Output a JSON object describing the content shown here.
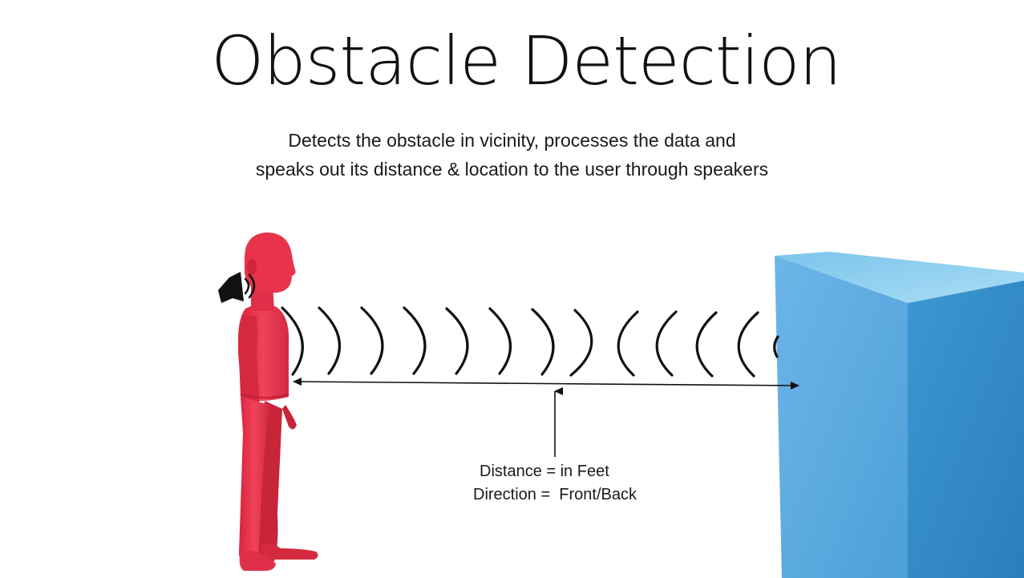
{
  "slide": {
    "title": "Obstacle Detection",
    "subtitle_line1": "Detects the obstacle in vicinity, processes the data and",
    "subtitle_line2": "speaks out its distance & location to the user through speakers"
  },
  "annotations": {
    "distance": "Distance = in Feet",
    "direction": "Direction =  Front/Back"
  },
  "colors": {
    "person": "#e8334a",
    "person_shadow": "#c41f36",
    "box_front": "#5aa9e0",
    "box_side": "#3a8fcc",
    "box_top": "#8fd0f0",
    "wave": "#111111",
    "speaker": "#111111"
  },
  "icons": {
    "speaker": "speaker-icon"
  }
}
